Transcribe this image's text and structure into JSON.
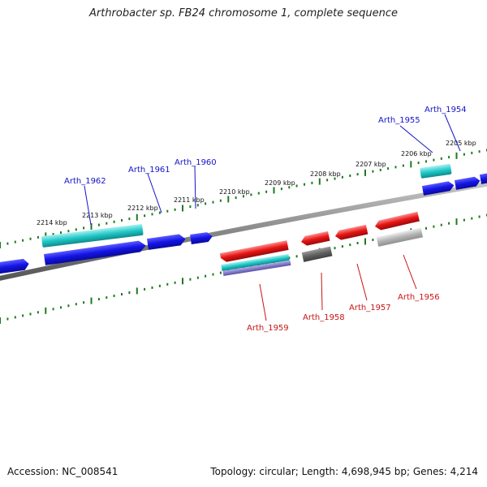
{
  "title": "Arthrobacter sp. FB24 chromosome 1, complete sequence",
  "footer": {
    "accession": "Accession: NC_008541",
    "summary": "Topology: circular; Length: 4,698,945 bp; Genes: 4,214"
  },
  "ruler_labels": [
    "2214 kbp",
    "2213 kbp",
    "2212 kbp",
    "2211 kbp",
    "2210 kbp",
    "2209 kbp",
    "2208 kbp",
    "2207 kbp",
    "2206 kbp",
    "2205 kbp"
  ],
  "genes_forward": [
    "Arth_1962",
    "Arth_1961",
    "Arth_1960",
    "Arth_1955",
    "Arth_1954"
  ],
  "genes_reverse": [
    "Arth_1959",
    "Arth_1958",
    "Arth_1957",
    "Arth_1956"
  ],
  "colors": {
    "forward_gene": "#1414e6",
    "forward_rna": "#20c8c8",
    "reverse_gene": "#e61414",
    "reverse_gray_light": "#b4b4b4",
    "reverse_gray_dark": "#606060",
    "backbone": "#888888",
    "tick": "#1e7a1e",
    "forward_label": "#1414c8",
    "reverse_label": "#c81414"
  }
}
